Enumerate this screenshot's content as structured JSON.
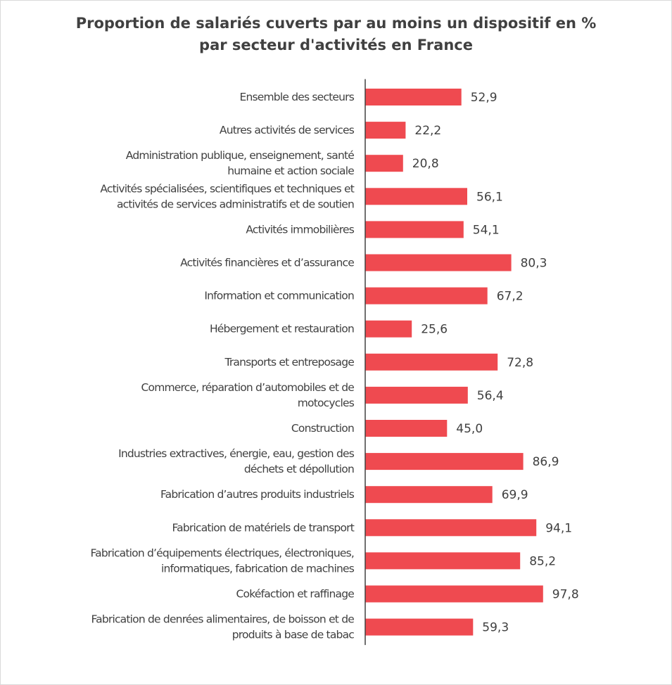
{
  "chart_data": {
    "type": "bar",
    "orientation": "horizontal",
    "title": [
      "Proportion de salariés cuverts par au moins un dispositif en %",
      "par secteur d'activités en France"
    ],
    "bar_color": "#ef4a50",
    "grid": false,
    "legend": "none",
    "xlim": [
      0,
      100
    ],
    "categories": [
      [
        "Ensemble des secteurs"
      ],
      [
        "Autres activités de services"
      ],
      [
        "Administration publique, enseignement, santé",
        "humaine et action sociale"
      ],
      [
        "Activités spécialisées, scientifiques et techniques et",
        "activités de services administratifs et de soutien"
      ],
      [
        "Activités immobilières"
      ],
      [
        "Activités financières et d’assurance"
      ],
      [
        "Information et communication"
      ],
      [
        "Hébergement et restauration"
      ],
      [
        "Transports et entreposage"
      ],
      [
        "Commerce, réparation d’automobiles et de",
        "motocycles"
      ],
      [
        "Construction"
      ],
      [
        "Industries extractives, énergie, eau, gestion des",
        "déchets et dépollution"
      ],
      [
        "Fabrication d’autres produits industriels"
      ],
      [
        "Fabrication de matériels de transport"
      ],
      [
        "Fabrication d’équipements électriques, électroniques,",
        "informatiques, fabrication de machines"
      ],
      [
        "Cokéfaction et raffinage"
      ],
      [
        "Fabrication de denrées alimentaires, de boisson et de",
        "produits à base de tabac"
      ]
    ],
    "values": [
      52.9,
      22.2,
      20.8,
      56.1,
      54.1,
      80.3,
      67.2,
      25.6,
      72.8,
      56.4,
      45.0,
      86.9,
      69.9,
      94.1,
      85.2,
      97.8,
      59.3
    ],
    "value_labels": [
      "52,9",
      "22,2",
      "20,8",
      "56,1",
      "54,1",
      "80,3",
      "67,2",
      "25,6",
      "72,8",
      "56,4",
      "45,0",
      "86,9",
      "69,9",
      "94,1",
      "85,2",
      "97,8",
      "59,3"
    ]
  }
}
